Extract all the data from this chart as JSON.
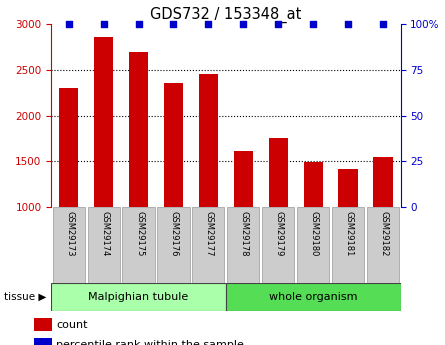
{
  "title": "GDS732 / 153348_at",
  "samples": [
    "GSM29173",
    "GSM29174",
    "GSM29175",
    "GSM29176",
    "GSM29177",
    "GSM29178",
    "GSM29179",
    "GSM29180",
    "GSM29181",
    "GSM29182"
  ],
  "counts": [
    2300,
    2860,
    2700,
    2360,
    2450,
    1610,
    1760,
    1490,
    1420,
    1550
  ],
  "percentiles": [
    100,
    100,
    100,
    100,
    100,
    100,
    100,
    100,
    100,
    100
  ],
  "ylim_left": [
    1000,
    3000
  ],
  "ylim_right": [
    0,
    100
  ],
  "bar_color": "#cc0000",
  "dot_color": "#0000cc",
  "tissue_groups": [
    {
      "label": "Malpighian tubule",
      "n": 5,
      "color": "#aaffaa"
    },
    {
      "label": "whole organism",
      "n": 5,
      "color": "#55dd55"
    }
  ],
  "tissue_label": "tissue ▶",
  "legend_count_label": "count",
  "legend_pct_label": "percentile rank within the sample",
  "yticks_left": [
    1000,
    1500,
    2000,
    2500,
    3000
  ],
  "yticks_right": [
    0,
    25,
    50,
    75,
    100
  ],
  "tick_label_bg": "#cccccc",
  "bg_color": "#ffffff"
}
